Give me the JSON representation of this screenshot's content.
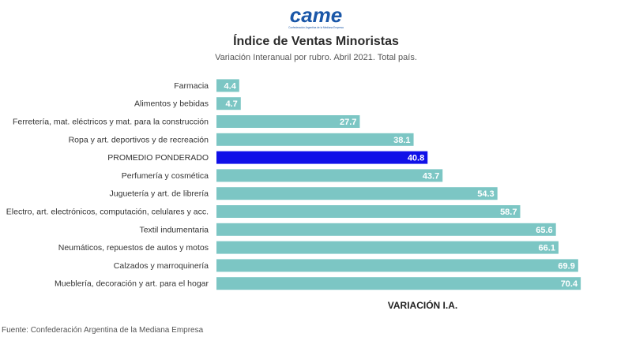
{
  "logo": {
    "text": "came",
    "tagline": "Confederación Argentina de la Mediana Empresa",
    "color": "#1a57a8"
  },
  "source": "Fuente: Confederación Argentina de la Mediana Empresa",
  "colors": {
    "bar": "#7cc6c4",
    "highlight": "#1010e8",
    "label_text": "#ffffff",
    "category_text": "#333333"
  },
  "chart_data": {
    "type": "bar",
    "orientation": "horizontal",
    "title": "Índice de Ventas Minoristas",
    "subtitle": "Variación Interanual por rubro. Abril 2021. Total país.",
    "xlabel": "VARIACIÓN I.A.",
    "ylabel": "",
    "xlim": [
      0,
      72
    ],
    "grid": false,
    "categories": [
      "Farmacia",
      "Alimentos y bebidas",
      "Ferretería, mat. eléctricos y mat. para la construcción",
      "Ropa y art. deportivos y de recreación",
      "PROMEDIO PONDERADO",
      "Perfumería y cosmética",
      "Juguetería y art. de librería",
      "Electro, art. electrónicos, computación, celulares y acc.",
      "Textil indumentaria",
      "Neumáticos, repuestos de autos y motos",
      "Calzados y marroquinería",
      "Mueblería, decoración y art. para el hogar"
    ],
    "values": [
      4.4,
      4.7,
      27.7,
      38.1,
      40.8,
      43.7,
      54.3,
      58.7,
      65.6,
      66.1,
      69.9,
      70.4
    ],
    "highlight": "PROMEDIO PONDERADO"
  }
}
